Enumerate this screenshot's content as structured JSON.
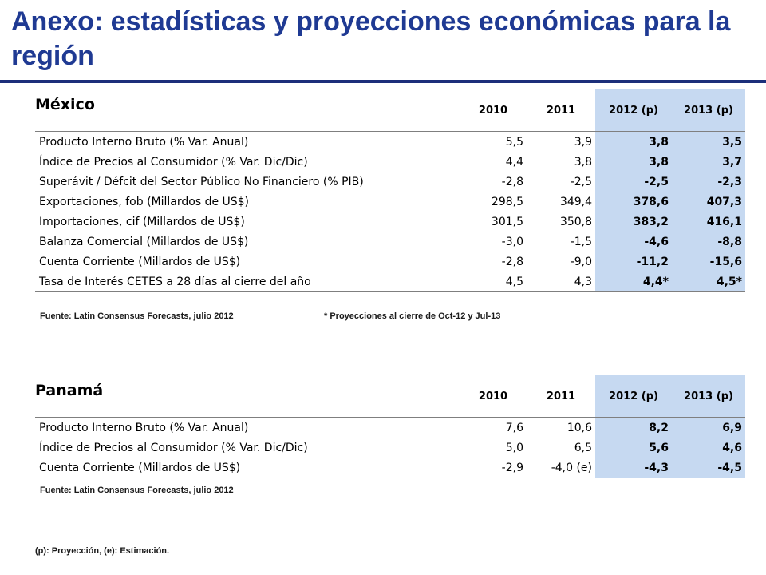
{
  "title": "Anexo: estadísticas y proyecciones económicas para la región",
  "mexico": {
    "label": "México",
    "columns": [
      "2010",
      "2011",
      "2012 (p)",
      "2013 (p)"
    ],
    "rows": [
      {
        "label": "Producto Interno Bruto (% Var. Anual)",
        "values": [
          "5,5",
          "3,9",
          "3,8",
          "3,5"
        ]
      },
      {
        "label": "Índice de Precios al Consumidor (% Var. Dic/Dic)",
        "values": [
          "4,4",
          "3,8",
          "3,8",
          "3,7"
        ]
      },
      {
        "label": "Superávit / Défcit del Sector Público No Financiero (% PIB)",
        "values": [
          "-2,8",
          "-2,5",
          "-2,5",
          "-2,3"
        ]
      },
      {
        "label": "Exportaciones, fob (Millardos de US$)",
        "values": [
          "298,5",
          "349,4",
          "378,6",
          "407,3"
        ]
      },
      {
        "label": "Importaciones, cif (Millardos de US$)",
        "values": [
          "301,5",
          "350,8",
          "383,2",
          "416,1"
        ]
      },
      {
        "label": "Balanza Comercial (Millardos de US$)",
        "values": [
          "-3,0",
          "-1,5",
          "-4,6",
          "-8,8"
        ]
      },
      {
        "label": "Cuenta Corriente (Millardos de US$)",
        "values": [
          "-2,8",
          "-9,0",
          "-11,2",
          "-15,6"
        ]
      },
      {
        "label": "Tasa de Interés CETES a 28 días al cierre del año",
        "values": [
          "4,5",
          "4,3",
          "4,4*",
          "4,5*"
        ]
      }
    ],
    "source": "Fuente: Latin Consensus Forecasts, julio 2012",
    "footnote": "* Proyecciones al cierre de Oct-12 y Jul-13"
  },
  "panama": {
    "label": "Panamá",
    "columns": [
      "2010",
      "2011",
      "2012 (p)",
      "2013 (p)"
    ],
    "rows": [
      {
        "label": "Producto Interno Bruto (% Var. Anual)",
        "values": [
          "7,6",
          "10,6",
          "8,2",
          "6,9"
        ]
      },
      {
        "label": "Índice de Precios al Consumidor (% Var. Dic/Dic)",
        "values": [
          "5,0",
          "6,5",
          "5,6",
          "4,6"
        ]
      },
      {
        "label": "Cuenta Corriente (Millardos de US$)",
        "values": [
          "-2,9",
          "-4,0 (e)",
          "-4,3",
          "-4,5"
        ]
      }
    ],
    "source": "Fuente: Latin Consensus Forecasts, julio 2012"
  },
  "legend_note": "(p): Proyección, (e): Estimación."
}
